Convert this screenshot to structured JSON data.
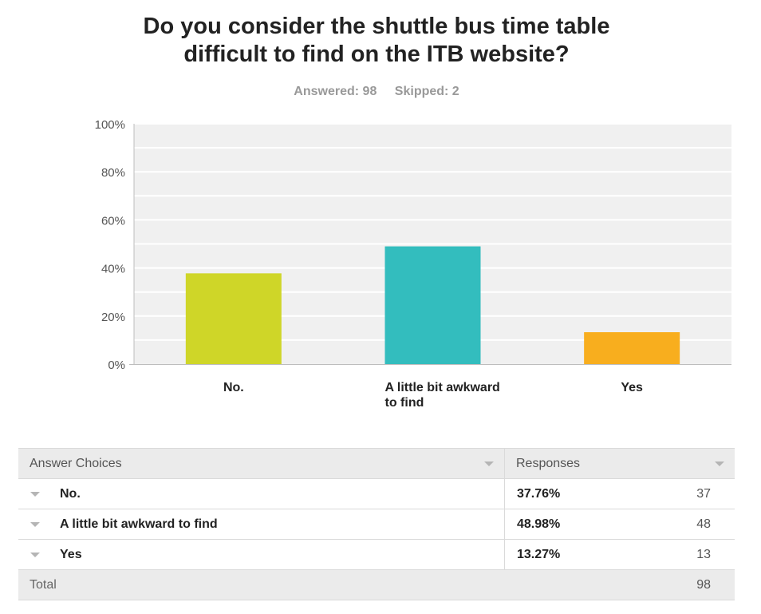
{
  "title_line1": "Do you consider the shuttle bus time table",
  "title_line2": "difficult to find on the ITB website?",
  "stats": {
    "answered": "Answered: 98",
    "skipped": "Skipped: 2"
  },
  "colors": {
    "no": "#cfd628",
    "awkward": "#33bdbe",
    "yes": "#f8ae1e",
    "plot_bg": "#f0f0f0",
    "grid": "#ffffff"
  },
  "chart_data": {
    "type": "bar",
    "title": "Do you consider the shuttle bus time table difficult to find on the ITB website?",
    "categories": [
      "No.",
      "A little bit awkward to find",
      "Yes"
    ],
    "category_label_lines": [
      [
        "No."
      ],
      [
        "A little bit awkward",
        "to find"
      ],
      [
        "Yes"
      ]
    ],
    "values": [
      37.76,
      48.98,
      13.27
    ],
    "ylim": [
      0,
      100
    ],
    "yticks": [
      "0%",
      "20%",
      "40%",
      "60%",
      "80%",
      "100%"
    ],
    "xlabel": "",
    "ylabel": ""
  },
  "table": {
    "headers": {
      "choices": "Answer Choices",
      "responses": "Responses"
    },
    "rows": [
      {
        "label": "No.",
        "pct": "37.76%",
        "count": "37"
      },
      {
        "label": "A little bit awkward to find",
        "pct": "48.98%",
        "count": "48"
      },
      {
        "label": "Yes",
        "pct": "13.27%",
        "count": "13"
      }
    ],
    "total": {
      "label": "Total",
      "count": "98"
    }
  }
}
